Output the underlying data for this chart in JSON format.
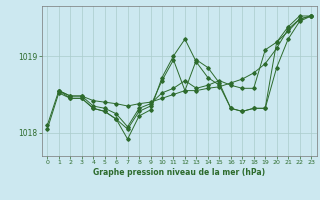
{
  "title": "Graphe pression niveau de la mer (hPa)",
  "background_color": "#cce8f0",
  "grid_color": "#aacccc",
  "line_color": "#2d6b2d",
  "ylim": [
    1017.7,
    1019.65
  ],
  "xlim": [
    -0.5,
    23.5
  ],
  "yticks": [
    1018,
    1019
  ],
  "xticks": [
    0,
    1,
    2,
    3,
    4,
    5,
    6,
    7,
    8,
    9,
    10,
    11,
    12,
    13,
    14,
    15,
    16,
    17,
    18,
    19,
    20,
    21,
    22,
    23
  ],
  "series": [
    {
      "x": [
        1,
        2,
        3,
        4,
        5,
        6,
        7,
        8,
        9,
        10,
        11,
        12,
        13,
        14,
        15,
        16,
        17,
        18,
        19,
        20,
        21,
        22,
        23
      ],
      "y": [
        1018.55,
        1018.48,
        1018.48,
        1018.42,
        1018.4,
        1018.38,
        1018.35,
        1018.38,
        1018.4,
        1018.45,
        1018.5,
        1018.55,
        1018.55,
        1018.58,
        1018.6,
        1018.65,
        1018.7,
        1018.78,
        1018.9,
        1019.1,
        1019.35,
        1019.48,
        1019.52
      ]
    },
    {
      "x": [
        0,
        1,
        2,
        3,
        4,
        5,
        6,
        7,
        8,
        9,
        10,
        11,
        12,
        13,
        14,
        15,
        16,
        17,
        18,
        19,
        20,
        21,
        22,
        23
      ],
      "y": [
        1018.1,
        1018.55,
        1018.48,
        1018.48,
        1018.35,
        1018.32,
        1018.25,
        1018.08,
        1018.32,
        1018.38,
        1018.52,
        1018.58,
        1018.68,
        1018.58,
        1018.62,
        1018.68,
        1018.62,
        1018.58,
        1018.58,
        1019.08,
        1019.18,
        1019.38,
        1019.52,
        1019.52
      ]
    },
    {
      "x": [
        1,
        2,
        3,
        4,
        5,
        6,
        7,
        8,
        9,
        10,
        11,
        12,
        13,
        14,
        15,
        16,
        17,
        18,
        19,
        20,
        21,
        22,
        23
      ],
      "y": [
        1018.55,
        1018.45,
        1018.45,
        1018.32,
        1018.28,
        1018.18,
        1017.92,
        1018.22,
        1018.3,
        1018.72,
        1019.0,
        1019.22,
        1018.92,
        1018.72,
        1018.62,
        1018.32,
        1018.28,
        1018.32,
        1018.32,
        1018.85,
        1019.22,
        1019.45,
        1019.52
      ]
    },
    {
      "x": [
        0,
        1,
        2,
        3,
        4,
        5,
        6,
        7,
        8,
        9,
        10,
        11,
        12,
        13,
        14,
        15,
        16,
        17,
        18,
        19,
        20,
        21,
        22,
        23
      ],
      "y": [
        1018.05,
        1018.52,
        1018.45,
        1018.45,
        1018.32,
        1018.28,
        1018.18,
        1018.05,
        1018.28,
        1018.35,
        1018.68,
        1018.95,
        1018.55,
        1018.95,
        1018.85,
        1018.65,
        1018.32,
        1018.28,
        1018.32,
        1018.32,
        1019.18,
        1019.32,
        1019.48,
        1019.52
      ]
    }
  ]
}
